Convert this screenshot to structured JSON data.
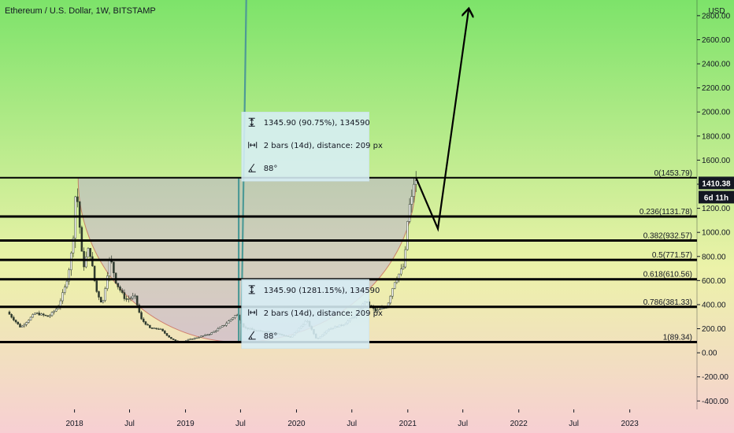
{
  "chart": {
    "title": "Ethereum / U.S. Dollar, 1W, BITSTAMP",
    "currency": "USD",
    "price_badge": "1410.38",
    "countdown_badge": "6d 11h"
  },
  "chart_data": {
    "type": "candlestick",
    "title": "Ethereum / U.S. Dollar, 1W, BITSTAMP",
    "ylabel": "USD",
    "ylim": [
      -470,
      2930
    ],
    "y_ticks": [
      -400,
      -200,
      0,
      200,
      400,
      600,
      800,
      1000,
      1200,
      1400,
      1600,
      1800,
      2000,
      2200,
      2400,
      2600,
      2800
    ],
    "y_tick_labels": [
      "-400.00",
      "-200.00",
      "0.00",
      "200.00",
      "400.00",
      "600.00",
      "800.00",
      "1000.00",
      "1200.00",
      "1400.00",
      "1600.00",
      "1800.00",
      "2000.00",
      "2200.00",
      "2400.00",
      "2600.00",
      "2800.00"
    ],
    "xlim": [
      "2017-05-01",
      "2023-08-10"
    ],
    "x_ticks": [
      {
        "date": "2018-01-01",
        "label": "2018"
      },
      {
        "date": "2018-07-01",
        "label": "Jul"
      },
      {
        "date": "2019-01-01",
        "label": "2019"
      },
      {
        "date": "2019-07-01",
        "label": "Jul"
      },
      {
        "date": "2020-01-01",
        "label": "2020"
      },
      {
        "date": "2020-07-01",
        "label": "Jul"
      },
      {
        "date": "2021-01-01",
        "label": "2021"
      },
      {
        "date": "2021-07-01",
        "label": "Jul"
      },
      {
        "date": "2022-01-01",
        "label": "2022"
      },
      {
        "date": "2022-07-01",
        "label": "Jul"
      },
      {
        "date": "2023-01-01",
        "label": "2023"
      }
    ],
    "price_path": [
      [
        "2017-06-01",
        340
      ],
      [
        "2017-07-15",
        210
      ],
      [
        "2017-09-01",
        330
      ],
      [
        "2017-10-15",
        300
      ],
      [
        "2017-11-15",
        380
      ],
      [
        "2017-12-10",
        560
      ],
      [
        "2017-12-25",
        750
      ],
      [
        "2018-01-05",
        1000
      ],
      [
        "2018-01-13",
        1400
      ],
      [
        "2018-01-20",
        1200
      ],
      [
        "2018-02-05",
        700
      ],
      [
        "2018-02-25",
        880
      ],
      [
        "2018-03-20",
        520
      ],
      [
        "2018-04-10",
        400
      ],
      [
        "2018-05-05",
        800
      ],
      [
        "2018-05-25",
        580
      ],
      [
        "2018-06-25",
        440
      ],
      [
        "2018-07-25",
        470
      ],
      [
        "2018-08-15",
        280
      ],
      [
        "2018-09-15",
        200
      ],
      [
        "2018-10-15",
        200
      ],
      [
        "2018-11-20",
        120
      ],
      [
        "2018-12-15",
        85
      ],
      [
        "2019-01-20",
        110
      ],
      [
        "2019-02-20",
        130
      ],
      [
        "2019-04-01",
        160
      ],
      [
        "2019-05-15",
        230
      ],
      [
        "2019-06-25",
        320
      ],
      [
        "2019-07-20",
        210
      ],
      [
        "2019-09-01",
        180
      ],
      [
        "2019-10-15",
        175
      ],
      [
        "2019-12-20",
        128
      ],
      [
        "2020-02-10",
        270
      ],
      [
        "2020-03-15",
        110
      ],
      [
        "2020-04-20",
        195
      ],
      [
        "2020-06-10",
        235
      ],
      [
        "2020-07-25",
        320
      ],
      [
        "2020-08-20",
        430
      ],
      [
        "2020-09-25",
        345
      ],
      [
        "2020-11-01",
        385
      ],
      [
        "2020-11-25",
        590
      ],
      [
        "2020-12-28",
        730
      ],
      [
        "2021-01-10",
        1200
      ],
      [
        "2021-01-20",
        1260
      ],
      [
        "2021-01-28",
        1410
      ]
    ],
    "projection_path": [
      [
        "2021-01-28",
        1454
      ],
      [
        "2021-04-10",
        1030
      ],
      [
        "2021-07-20",
        2850
      ]
    ],
    "cup_curve": {
      "left": [
        "2018-01-13",
        1454
      ],
      "bottom": [
        "2019-06-25",
        89
      ],
      "right": [
        "2021-01-28",
        1454
      ]
    },
    "vertical_rays": [
      {
        "from": [
          "2019-07-03",
          89
        ],
        "to": [
          "2019-07-20",
          2950
        ]
      },
      {
        "from": [
          "2019-06-25",
          89
        ],
        "to": [
          "2019-06-25",
          1454
        ]
      }
    ],
    "fib_levels": [
      {
        "value": 1453.79,
        "label": "0(1453.79)"
      },
      {
        "value": 1131.78,
        "label": "0.236(1131.78)"
      },
      {
        "value": 932.57,
        "label": "0.382(932.57)"
      },
      {
        "value": 771.57,
        "label": "0.5(771.57)"
      },
      {
        "value": 610.56,
        "label": "0.618(610.56)"
      },
      {
        "value": 381.33,
        "label": "0.786(381.33)"
      },
      {
        "value": 89.34,
        "label": "1(89.34)"
      }
    ],
    "measure_boxes": [
      {
        "anchor": [
          "2019-07-25",
          2000
        ],
        "rows": [
          "1345.90 (90.75%), 134590",
          "2 bars (14d), distance: 209 px",
          "88°"
        ],
        "icons": [
          "price-range-icon",
          "bar-range-icon",
          "angle-icon"
        ]
      },
      {
        "anchor": [
          "2019-07-25",
          610
        ],
        "rows": [
          "1345.90 (1281.15%), 134590",
          "2 bars (14d), distance: 209 px",
          "88°"
        ],
        "icons": [
          "price-range-icon",
          "bar-range-icon",
          "angle-icon"
        ]
      }
    ],
    "price_marker": 1410.38,
    "colors": {
      "bull": "#26a69a",
      "bear": "#ef5350",
      "candle": "#2e3a2e",
      "fib": "#000000",
      "projection": "#000000",
      "cup_fill": "#b39ddb",
      "ray": "#4e9a96",
      "badge_dark": "#131722",
      "bg_top": "#7de36a",
      "bg_mid": "#ecf2a9",
      "bg_bottom": "#f7cfd3"
    }
  }
}
